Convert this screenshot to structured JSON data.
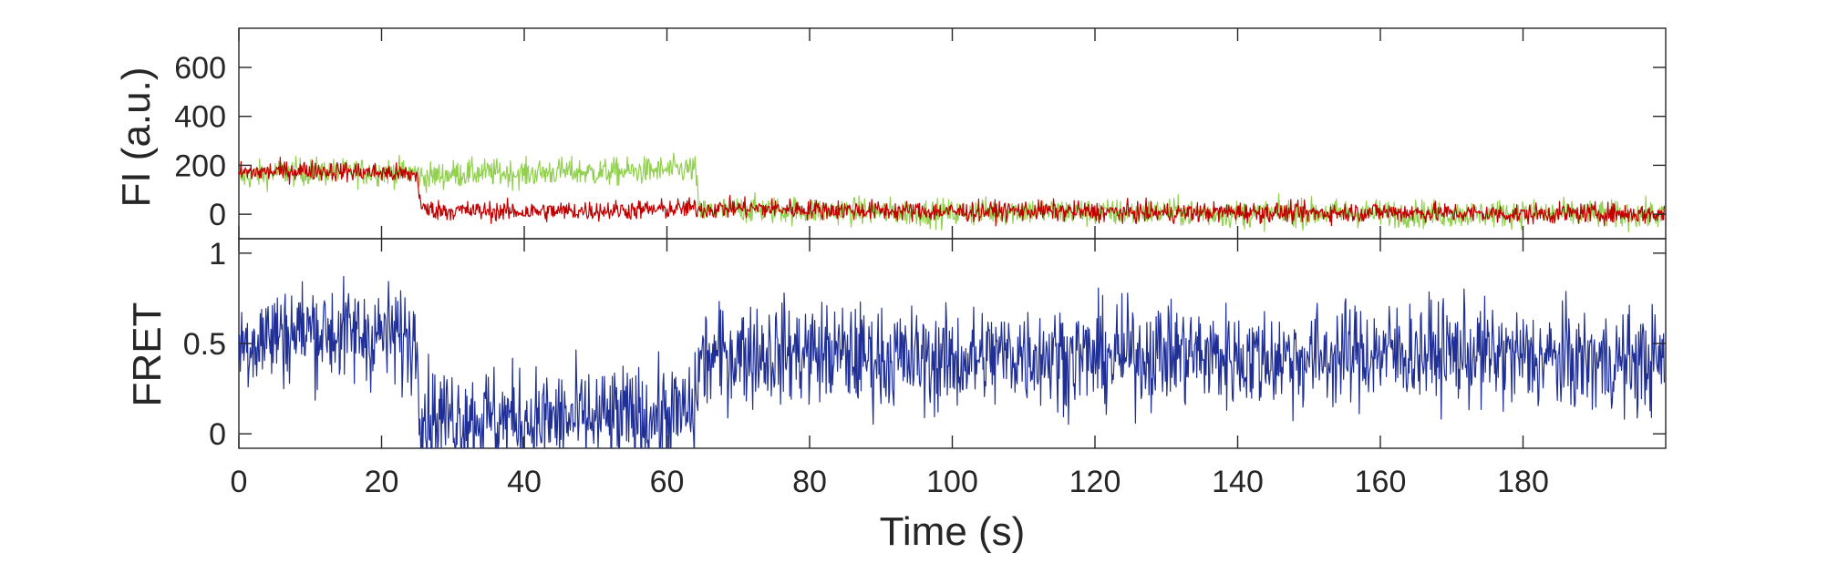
{
  "chart_data": [
    {
      "type": "line",
      "panel": "fluorescence",
      "ylabel": "FI (a.u.)",
      "xlim": [
        0,
        200
      ],
      "ylim": [
        -100,
        760
      ],
      "yticks": [
        0,
        200,
        400,
        600
      ],
      "ytick_labels": [
        "0",
        "200",
        "400",
        "600"
      ],
      "series": [
        {
          "color": "#92d050",
          "x": [
            0,
            5,
            10,
            15,
            20,
            25,
            25.6,
            30,
            35,
            40,
            45,
            50,
            55,
            60,
            64,
            64.5,
            70,
            80,
            90,
            100,
            110,
            120,
            130,
            140,
            150,
            160,
            170,
            180,
            190,
            199.8
          ],
          "y": [
            150,
            170,
            175,
            170,
            175,
            170,
            150,
            165,
            170,
            165,
            175,
            170,
            175,
            180,
            185,
            10,
            20,
            15,
            10,
            5,
            15,
            5,
            10,
            0,
            5,
            5,
            0,
            5,
            0,
            -5
          ],
          "noise": 55
        },
        {
          "color": "#c00000",
          "x": [
            0,
            5,
            10,
            15,
            20,
            25,
            25.6,
            30,
            40,
            50,
            60,
            64,
            64.5,
            70,
            80,
            90,
            100,
            110,
            120,
            130,
            140,
            150,
            160,
            170,
            180,
            190,
            199.8
          ],
          "y": [
            170,
            175,
            180,
            175,
            170,
            160,
            20,
            15,
            10,
            15,
            20,
            25,
            20,
            25,
            20,
            15,
            10,
            15,
            10,
            5,
            10,
            5,
            10,
            5,
            0,
            5,
            0
          ],
          "noise": 40
        }
      ]
    },
    {
      "type": "line",
      "panel": "fret",
      "ylabel": "FRET",
      "xlabel": "Time (s)",
      "xlim": [
        0,
        200
      ],
      "ylim": [
        -0.08,
        1.08
      ],
      "yticks": [
        0,
        0.5,
        1
      ],
      "ytick_labels": [
        "0",
        "0.5",
        "1"
      ],
      "xticks": [
        0,
        20,
        40,
        60,
        80,
        100,
        120,
        140,
        160,
        180
      ],
      "xtick_labels": [
        "0",
        "20",
        "40",
        "60",
        "80",
        "100",
        "120",
        "140",
        "160",
        "180"
      ],
      "series": [
        {
          "color": "#1f2f96",
          "x": [
            0,
            5,
            10,
            15,
            20,
            25,
            25.6,
            30,
            40,
            50,
            60,
            64,
            64.5,
            70,
            80,
            90,
            100,
            110,
            120,
            130,
            140,
            150,
            160,
            170,
            180,
            190,
            199.8
          ],
          "y": [
            0.5,
            0.55,
            0.58,
            0.55,
            0.55,
            0.52,
            0.1,
            0.1,
            0.08,
            0.08,
            0.1,
            0.12,
            0.4,
            0.45,
            0.45,
            0.42,
            0.4,
            0.45,
            0.42,
            0.45,
            0.42,
            0.42,
            0.45,
            0.45,
            0.42,
            0.4,
            0.4
          ],
          "noise": 0.28
        }
      ]
    }
  ]
}
